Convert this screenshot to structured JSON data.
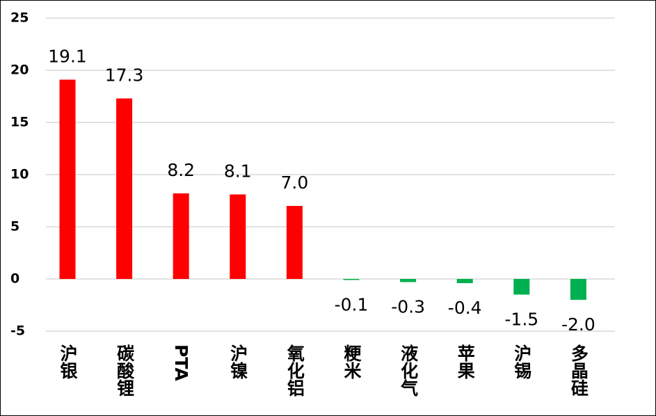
{
  "chart_data": {
    "type": "bar",
    "categories": [
      "沪银",
      "碳酸锂",
      "PTA",
      "沪镍",
      "氧化铝",
      "粳米",
      "液化气",
      "苹果",
      "沪锡",
      "多晶硅"
    ],
    "values": [
      19.1,
      17.3,
      8.2,
      8.1,
      7.0,
      -0.1,
      -0.3,
      -0.4,
      -1.5,
      -2.0
    ],
    "value_labels": [
      "19.1",
      "17.3",
      "8.2",
      "8.1",
      "7.0",
      "-0.1",
      "-0.3",
      "-0.4",
      "-1.5",
      "-2.0"
    ],
    "color_positive": "#ff0000",
    "color_negative": "#00b050",
    "ylim": [
      -5,
      25
    ],
    "yticks": [
      -5,
      0,
      5,
      10,
      15,
      20,
      25
    ],
    "grid": true
  }
}
